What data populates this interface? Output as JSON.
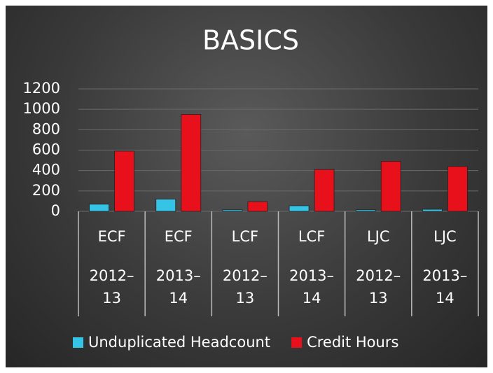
{
  "chart_data": {
    "type": "bar",
    "title": "BASICS",
    "categories": [
      [
        "ECF",
        "2012–13"
      ],
      [
        "ECF",
        "2013–14"
      ],
      [
        "LCF",
        "2012–13"
      ],
      [
        "LCF",
        "2013–14"
      ],
      [
        "LJC",
        "2012–13"
      ],
      [
        "LJC",
        "2013–14"
      ]
    ],
    "series": [
      {
        "name": "Unduplicated Headcount",
        "color": "#35c3e6",
        "values": [
          70,
          120,
          15,
          55,
          15,
          20
        ]
      },
      {
        "name": "Credit Hours",
        "color": "#e8101a",
        "values": [
          590,
          950,
          95,
          410,
          490,
          440
        ]
      }
    ],
    "ylim": [
      0,
      1200
    ],
    "yticks": [
      0,
      200,
      400,
      600,
      800,
      1000,
      1200
    ],
    "grid": true,
    "legend": "bottom"
  }
}
